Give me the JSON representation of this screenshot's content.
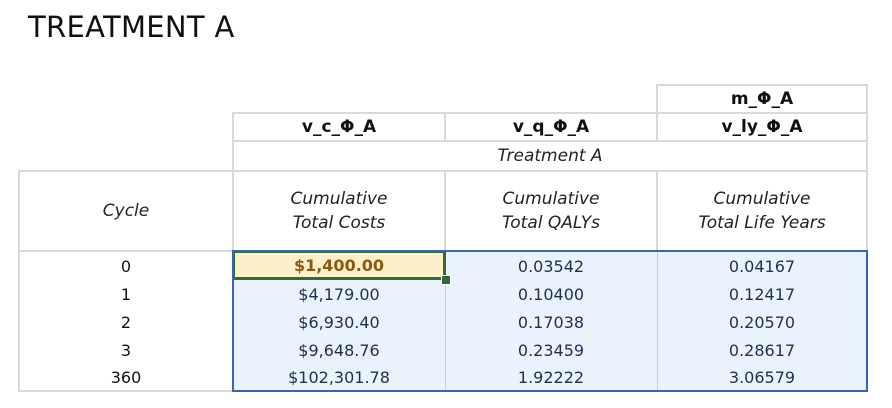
{
  "title": "TREATMENT A",
  "matrix_label": "m_Φ_A",
  "columns": [
    {
      "var": "v_c_Φ_A",
      "line1": "Cumulative",
      "line2": "Total Costs"
    },
    {
      "var": "v_q_Φ_A",
      "line1": "Cumulative",
      "line2": "Total QALYs"
    },
    {
      "var": "v_ly_Φ_A",
      "line1": "Cumulative",
      "line2": "Total Life Years"
    }
  ],
  "group_label": "Treatment A",
  "cycle_header": "Cycle",
  "rows": [
    {
      "cycle": "0",
      "cost": "$1,400.00",
      "qaly": "0.03542",
      "ly": "0.04167"
    },
    {
      "cycle": "1",
      "cost": "$4,179.00",
      "qaly": "0.10400",
      "ly": "0.12417"
    },
    {
      "cycle": "2",
      "cost": "$6,930.40",
      "qaly": "0.17038",
      "ly": "0.20570"
    },
    {
      "cycle": "3",
      "cost": "$9,648.76",
      "qaly": "0.23459",
      "ly": "0.28617"
    },
    {
      "cycle": "360",
      "cost": "$102,301.78",
      "qaly": "1.92222",
      "ly": "3.06579"
    }
  ],
  "colors": {
    "selection_border": "#3a63b0",
    "selection_fill": "#eaf3fb",
    "active_cell_border": "#2f6b3c",
    "active_cell_fill": "#fdefc8",
    "active_cell_text": "#8a5a12",
    "grid": "#d9d9d9"
  }
}
